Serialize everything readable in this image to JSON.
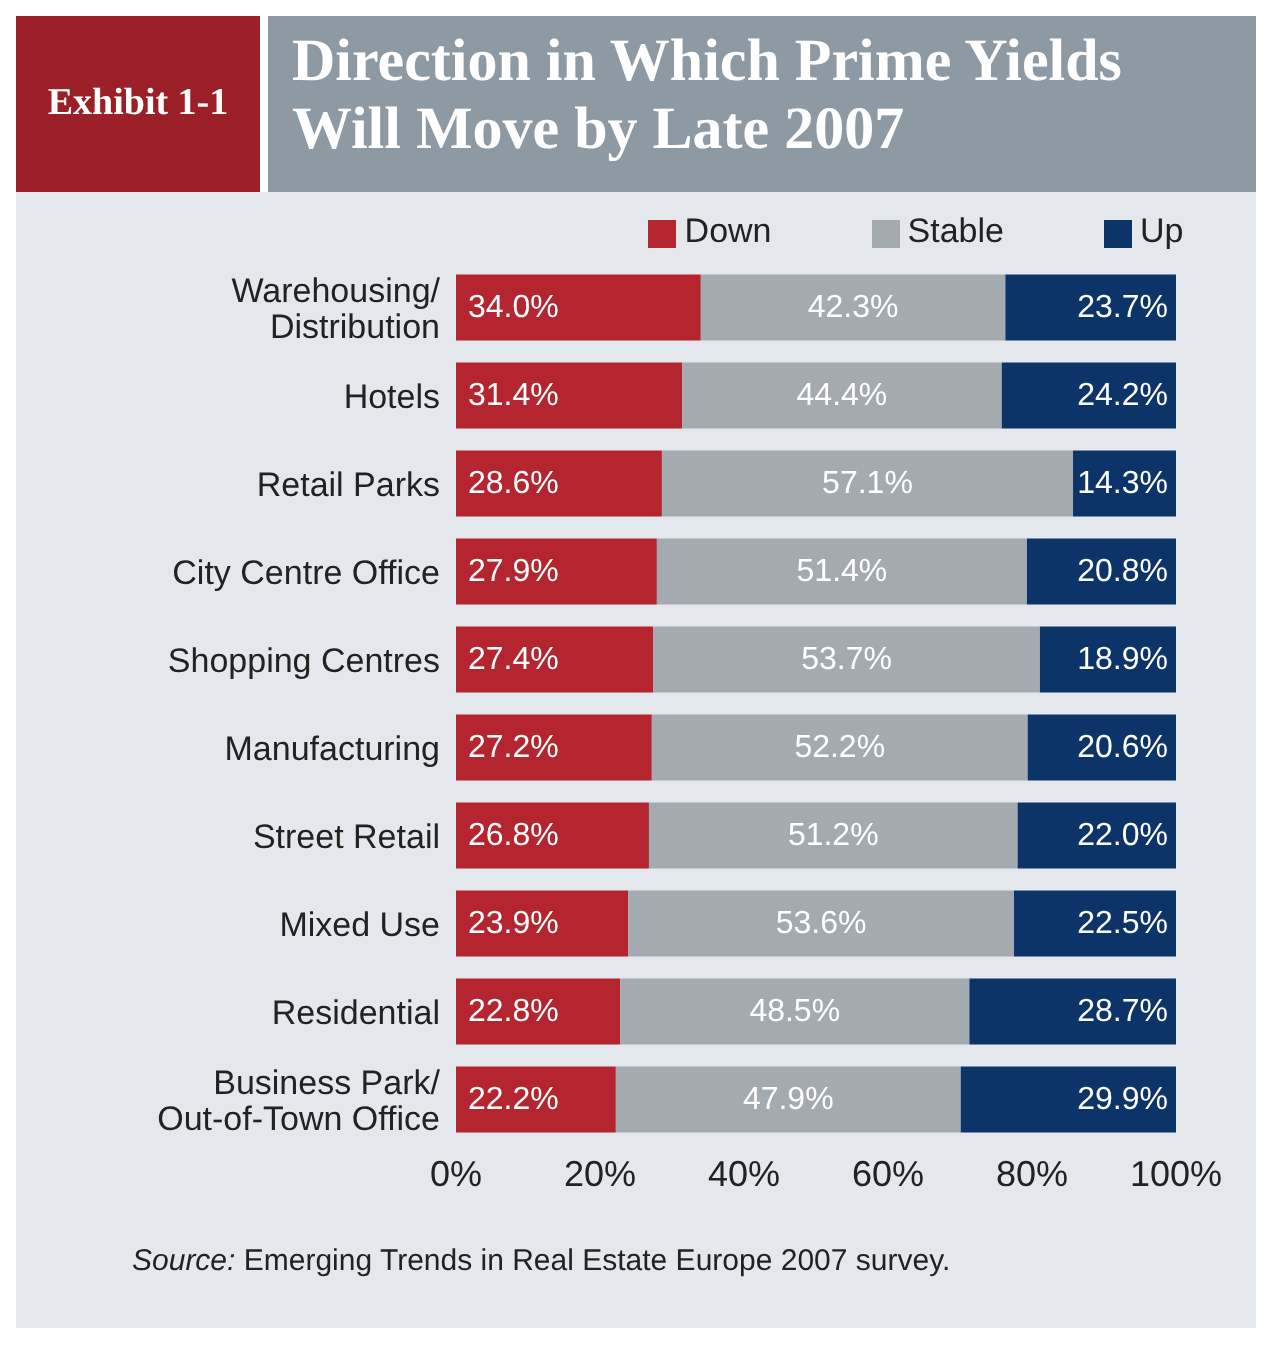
{
  "chart_data": {
    "type": "bar",
    "orientation": "horizontal",
    "stacked": true,
    "title": "Direction in Which Prime Yields Will Move by Late 2007",
    "subtitle": "Exhibit 1-1",
    "categories": [
      "Warehousing/\nDistribution",
      "Hotels",
      "Retail Parks",
      "City Centre Office",
      "Shopping Centres",
      "Manufacturing",
      "Street Retail",
      "Mixed Use",
      "Residential",
      "Business Park/\nOut-of-Town Office"
    ],
    "series": [
      {
        "name": "Down",
        "color": "#b5252f",
        "values": [
          34.0,
          31.4,
          28.6,
          27.9,
          27.4,
          27.2,
          26.8,
          23.9,
          22.8,
          22.2
        ],
        "value_labels": [
          "34.0%",
          "31.4%",
          "28.6%",
          "27.9%",
          "27.4%",
          "27.2%",
          "26.8%",
          "23.9%",
          "22.8%",
          "22.2%"
        ]
      },
      {
        "name": "Stable",
        "color": "#a3abb1",
        "values": [
          42.3,
          44.4,
          57.1,
          51.4,
          53.7,
          52.2,
          51.2,
          53.6,
          48.5,
          47.9
        ],
        "value_labels": [
          "42.3%",
          "44.4%",
          "57.1%",
          "51.4%",
          "53.7%",
          "52.2%",
          "51.2%",
          "53.6%",
          "48.5%",
          "47.9%"
        ]
      },
      {
        "name": "Up",
        "color": "#0d3468",
        "values": [
          23.7,
          24.2,
          14.3,
          20.8,
          18.9,
          20.6,
          22.0,
          22.5,
          28.7,
          29.9
        ],
        "value_labels": [
          "23.7%",
          "24.2%",
          "14.3%",
          "20.8%",
          "18.9%",
          "20.6%",
          "22.0%",
          "22.5%",
          "28.7%",
          "29.9%"
        ]
      }
    ],
    "xlim": [
      0,
      100
    ],
    "xticks": [
      {
        "value": 0,
        "label": "0%"
      },
      {
        "value": 20,
        "label": "20%"
      },
      {
        "value": 40,
        "label": "40%"
      },
      {
        "value": 60,
        "label": "60%"
      },
      {
        "value": 80,
        "label": "80%"
      },
      {
        "value": 100,
        "label": "100%"
      }
    ],
    "legend": "top",
    "grid": false,
    "annotations": [
      "Source: Emerging Trends in Real Estate Europe 2007 survey."
    ]
  }
}
